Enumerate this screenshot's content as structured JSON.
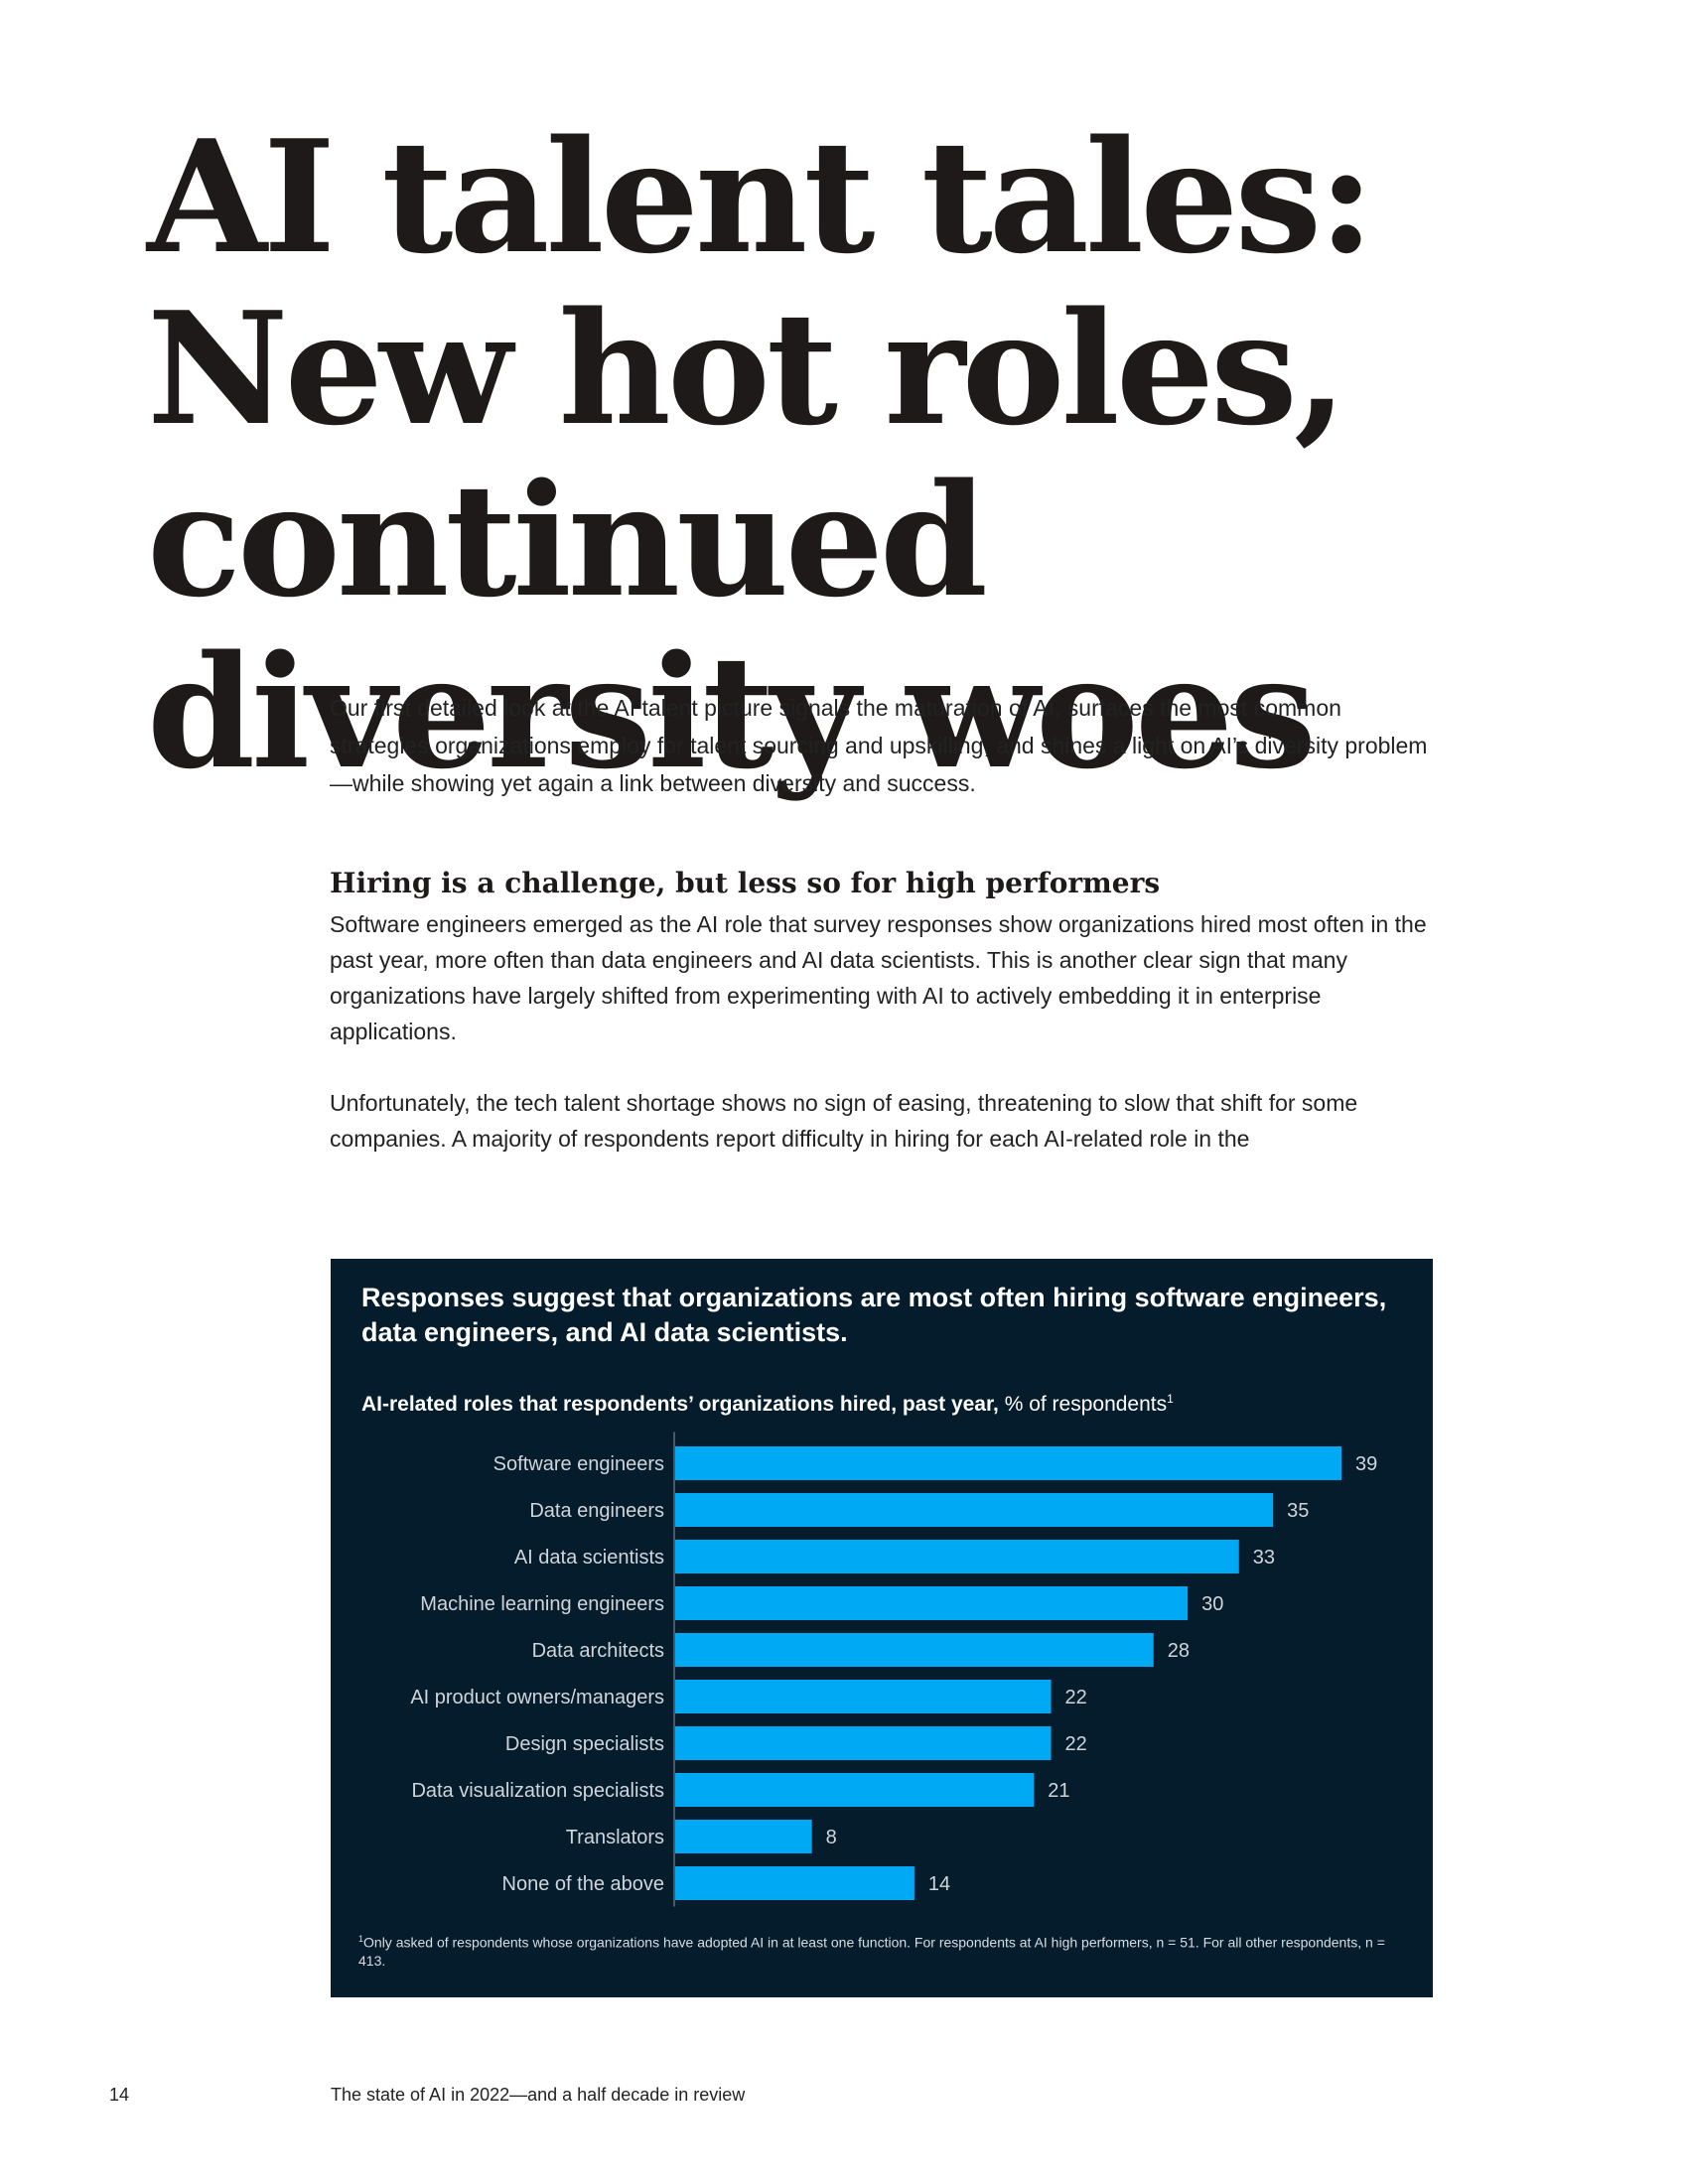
{
  "title": "AI talent tales: New hot roles, continued diversity woes",
  "intro": "Our first detailed look at the AI talent picture signals the maturation of AI, surfaces the most common strategies organizations employ for talent sourcing and upskilling, and shines a light on AI’s diversity problem—while showing yet again a link between diversity and success.",
  "section": {
    "heading": "Hiring is a challenge, but less so for high performers",
    "paragraph1": "Software engineers emerged as the AI role that survey responses show organizations hired most often in the past year, more often than data engineers and AI data scientists. This is another clear sign that many organizations have largely shifted from experimenting with AI to actively embedding it in enterprise applications.",
    "paragraph2": "Unfortunately, the tech talent shortage shows no sign of easing, threatening to slow that shift for some companies. A majority of respondents report difficulty in hiring for each AI-related role in the"
  },
  "exhibit": {
    "title": "Responses suggest that organizations are most often hiring software engineers, data engineers, and AI data scientists.",
    "subtitle_bold": "AI-related roles that respondents’ organizations hired, past year,",
    "subtitle_regular": "% of respondents",
    "subtitle_marker": "1",
    "footnote_marker": "1",
    "footnote": "Only asked of respondents whose organizations have adopted AI in at least one function.  For respondents at AI high performers, n = 51. For all other respondents, n = 413."
  },
  "chart_data": {
    "type": "bar",
    "orientation": "horizontal",
    "categories": [
      "Software engineers",
      "Data engineers",
      "AI data scientists",
      "Machine learning engineers",
      "Data architects",
      "AI product owners/managers",
      "Design specialists",
      "Data visualization specialists",
      "Translators",
      "None of the above"
    ],
    "values": [
      39,
      35,
      33,
      30,
      28,
      22,
      22,
      21,
      8,
      14
    ],
    "data_labels": [
      "39",
      "35",
      "33",
      "30",
      "28",
      "22",
      "22",
      "21",
      "8",
      "14"
    ],
    "title": "Responses suggest that organizations are most often hiring software engineers, data engineers, and AI data scientists.",
    "ylabel": "AI-related roles that respondents’ organizations hired, past year, % of respondents",
    "xlim": [
      0,
      39
    ],
    "bar_color": "#00a9f4",
    "background_color": "#051c2c",
    "grid": false,
    "legend": "none"
  },
  "footer": {
    "page_number": "14",
    "running_title": "The state of AI in 2022—and a half decade in review"
  }
}
